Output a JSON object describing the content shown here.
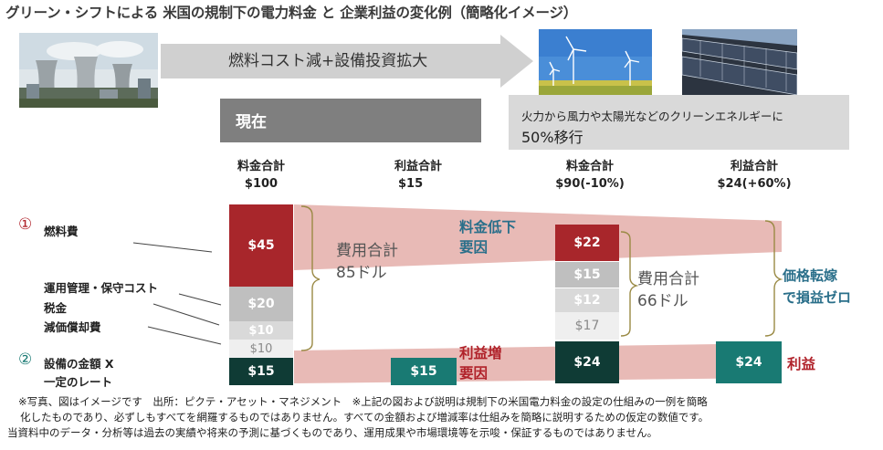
{
  "title": "グリーン・シフトによる 米国の規制下の電力料金 と 企業利益の変化例（簡略化イメージ）",
  "arrow_text": "燃料コスト減+設備投資拡大",
  "now_label": "現在",
  "shift_line1": "火力から風力や太陽光などのクリーンエネルギーに",
  "shift_line2": "50%移行",
  "columns": [
    {
      "line1": "料金合計",
      "line2": "$100"
    },
    {
      "line1": "利益合計",
      "line2": "$15"
    },
    {
      "line1": "料金合計",
      "line2": "$90(-10%)"
    },
    {
      "line1": "利益合計",
      "line2": "$24(+60%)"
    }
  ],
  "left_labels": {
    "fuel_num": "①",
    "fuel": "燃料費",
    "opex": "運用管理・保守コスト",
    "tax": "税金",
    "depr": "減価償却費",
    "asset_num": "②",
    "asset_line1": "設備の金額  X",
    "asset_line2": "一定のレート"
  },
  "bar_now": {
    "fuel": "$45",
    "opex": "$20",
    "tax": "$10",
    "depr": "$10",
    "profit": "$15"
  },
  "profit_now": "$15",
  "bar_future": {
    "fuel": "$22",
    "opex": "$15",
    "tax": "$12",
    "depr": "$17",
    "profit": "$24"
  },
  "profit_future": "$24",
  "cost_now_line1": "費用合計",
  "cost_now_line2": "85ドル",
  "cost_future_line1": "費用合計",
  "cost_future_line2": "66ドル",
  "rate_down_line1": "料金低下",
  "rate_down_line2": "要因",
  "profit_up_line1": "利益増",
  "profit_up_line2": "要因",
  "pass_through_line1": "価格転嫁",
  "pass_through_line2": "で損益ゼロ",
  "profit_label": "利益",
  "notes": [
    "※写真、図はイメージです　出所：ピクテ・アセット・マネジメント　※上記の図および説明は規制下の米国電力料金の設定の仕組みの一例を簡略",
    "化したものであり、必ずしもすべてを網羅するものではありません。すべての金額および増減率は仕組みを簡略に説明するための仮定の数値です。",
    "当資料中のデータ・分析等は過去の実績や将来の予測に基づくものであり、運用成果や市場環境等を示唆・保証するものではありません。"
  ],
  "colors": {
    "fuel": "#a8262b",
    "opex": "#bfbfbf",
    "tax": "#d9d9d9",
    "depr": "#ededed",
    "profit_dark": "#0f3b35",
    "profit_teal": "#197a73",
    "band": "#e3b0ac",
    "accent_teal": "#2a6f8a",
    "accent_red": "#b0222a"
  }
}
